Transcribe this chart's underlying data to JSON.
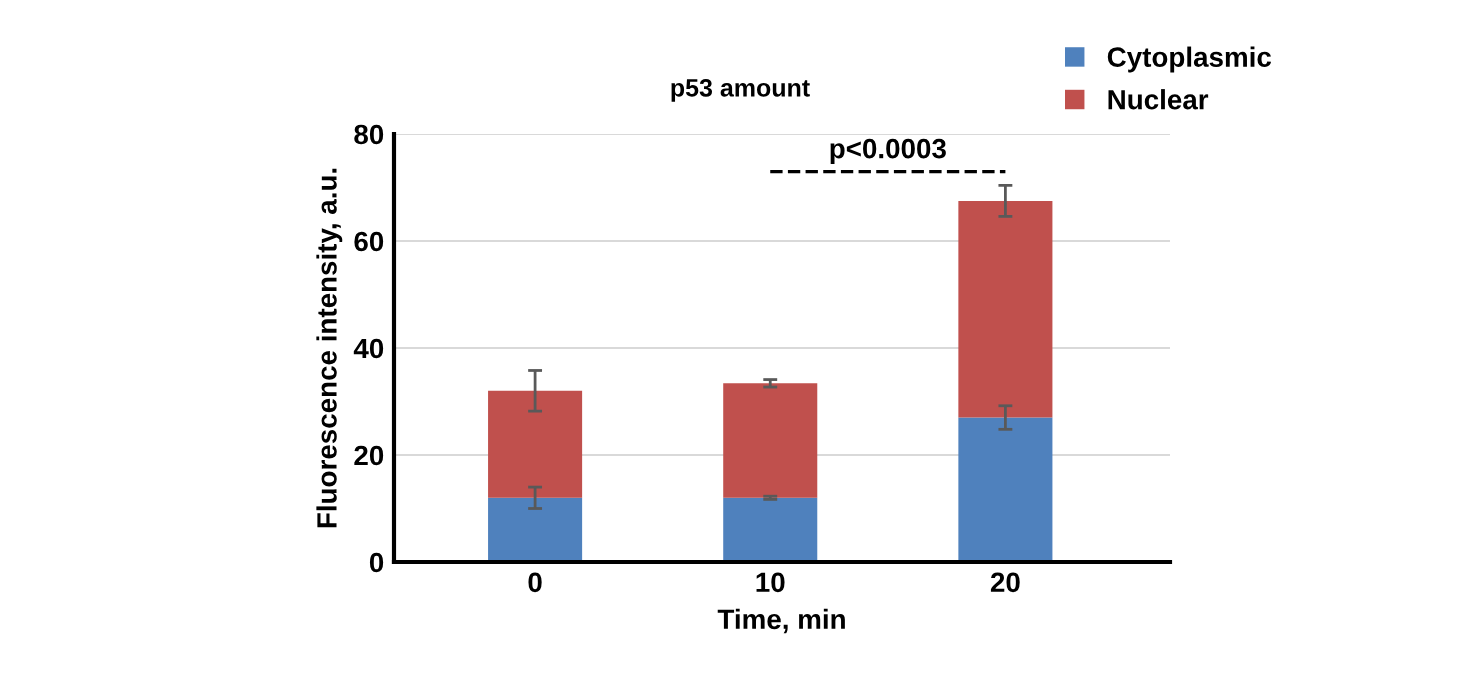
{
  "chart_data": {
    "type": "bar",
    "stacked": true,
    "title": "p53 amount",
    "xlabel": "Time, min",
    "ylabel": "Fluorescence intensity, a.u.",
    "categories": [
      "0",
      "10",
      "20"
    ],
    "series": [
      {
        "name": "Cytoplasmic",
        "color": "#4f81bd",
        "values": [
          12,
          12,
          27
        ],
        "errors": [
          2,
          0.3,
          2.2
        ]
      },
      {
        "name": "Nuclear",
        "color": "#c0504d",
        "values": [
          20,
          21.4,
          40.5
        ],
        "errors": [
          3.8,
          0.7,
          2.9
        ]
      }
    ],
    "ylim": [
      0,
      80
    ],
    "yticks": [
      0,
      20,
      40,
      60,
      80
    ],
    "grid": "y",
    "legend": "top right",
    "annotations": [
      "p<0.0003"
    ]
  }
}
